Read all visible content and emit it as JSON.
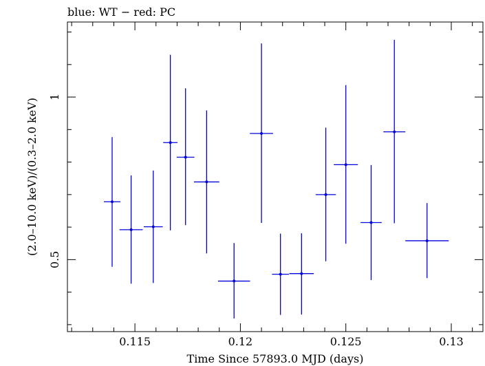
{
  "chart_data": {
    "type": "scatter",
    "title": "blue: WT − red: PC",
    "xlabel": "Time Since 57893.0 MJD (days)",
    "ylabel": "(2.0–10.0 keV)/(0.3–2.0 keV)",
    "xlim": [
      0.1118,
      0.1315
    ],
    "ylim": [
      0.2786,
      1.2308
    ],
    "x_ticks": [
      0.115,
      0.12,
      0.125,
      0.13
    ],
    "x_tick_labels": [
      "0.115",
      "0.12",
      "0.125",
      "0.13"
    ],
    "y_ticks": [
      0.5,
      1
    ],
    "y_tick_labels": [
      "0.5",
      "1"
    ],
    "grid": false,
    "legend": "none",
    "colors": {
      "series": "#0000dd",
      "axes": "#000000"
    },
    "series": [
      {
        "points": [
          {
            "x": 0.11392,
            "xerr": 0.00039,
            "y": 0.678,
            "ylo": 0.478,
            "yhi": 0.877
          },
          {
            "x": 0.11482,
            "xerr": 0.00055,
            "y": 0.592,
            "ylo": 0.426,
            "yhi": 0.759
          },
          {
            "x": 0.11587,
            "xerr": 0.00045,
            "y": 0.601,
            "ylo": 0.428,
            "yhi": 0.774
          },
          {
            "x": 0.11668,
            "xerr": 0.00034,
            "y": 0.86,
            "ylo": 0.59,
            "yhi": 1.13
          },
          {
            "x": 0.1174,
            "xerr": 0.00042,
            "y": 0.815,
            "ylo": 0.606,
            "yhi": 1.027
          },
          {
            "x": 0.1184,
            "xerr": 0.0006,
            "y": 0.739,
            "ylo": 0.519,
            "yhi": 0.959
          },
          {
            "x": 0.1197,
            "xerr": 0.00076,
            "y": 0.434,
            "ylo": 0.319,
            "yhi": 0.551
          },
          {
            "x": 0.121,
            "xerr": 0.00055,
            "y": 0.888,
            "ylo": 0.613,
            "yhi": 1.165
          },
          {
            "x": 0.1219,
            "xerr": 0.0004,
            "y": 0.455,
            "ylo": 0.33,
            "yhi": 0.58
          },
          {
            "x": 0.1229,
            "xerr": 0.00058,
            "y": 0.457,
            "ylo": 0.331,
            "yhi": 0.581
          },
          {
            "x": 0.12405,
            "xerr": 0.00048,
            "y": 0.7,
            "ylo": 0.495,
            "yhi": 0.906
          },
          {
            "x": 0.125,
            "xerr": 0.00057,
            "y": 0.792,
            "ylo": 0.549,
            "yhi": 1.037
          },
          {
            "x": 0.1262,
            "xerr": 0.0005,
            "y": 0.614,
            "ylo": 0.437,
            "yhi": 0.791
          },
          {
            "x": 0.1273,
            "xerr": 0.00052,
            "y": 0.893,
            "ylo": 0.612,
            "yhi": 1.176
          },
          {
            "x": 0.12885,
            "xerr": 0.00103,
            "y": 0.558,
            "ylo": 0.443,
            "yhi": 0.674
          }
        ]
      }
    ]
  }
}
